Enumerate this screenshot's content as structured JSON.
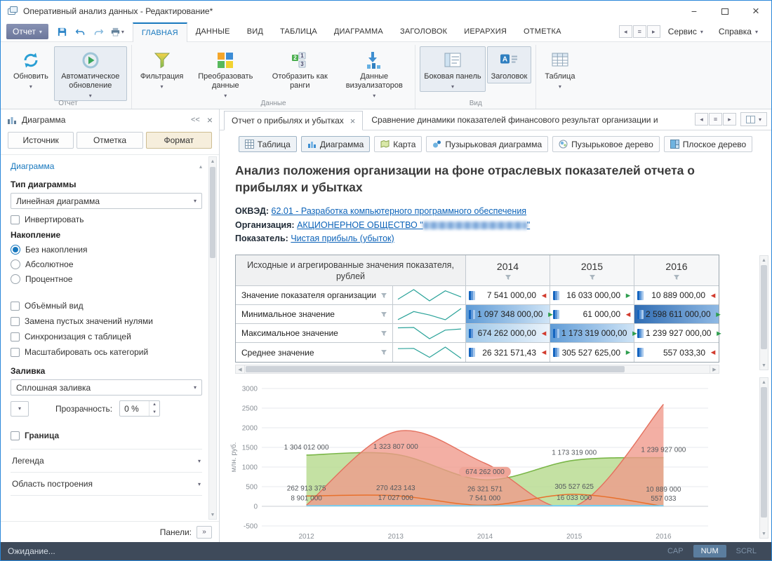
{
  "window": {
    "title": "Оперативный анализ данных - Редактирование*",
    "status_text": "Ожидание...",
    "keyboard_indicators": [
      {
        "label": "CAP",
        "active": false
      },
      {
        "label": "NUM",
        "active": true
      },
      {
        "label": "SCRL",
        "active": false
      }
    ]
  },
  "ribbon": {
    "file_button_label": "Отчет",
    "tabs": [
      "ГЛАВНАЯ",
      "ДАННЫЕ",
      "ВИД",
      "ТАБЛИЦА",
      "ДИАГРАММА",
      "ЗАГОЛОВОК",
      "ИЕРАРХИЯ",
      "ОТМЕТКА"
    ],
    "right_menus": [
      "Сервис",
      "Справка"
    ],
    "groups": [
      {
        "label": "Отчет",
        "buttons": [
          {
            "label": "Обновить",
            "caret": true,
            "selected": false
          },
          {
            "label": "Автоматическое обновление",
            "caret": true,
            "selected": true
          }
        ]
      },
      {
        "label": "Данные",
        "buttons": [
          {
            "label": "Фильтрация",
            "caret": true,
            "selected": false
          },
          {
            "label": "Преобразовать данные",
            "caret": true,
            "selected": false
          },
          {
            "label": "Отобразить как ранги",
            "caret": false,
            "selected": false
          },
          {
            "label": "Данные визуализаторов",
            "caret": true,
            "selected": false
          }
        ]
      },
      {
        "label": "Вид",
        "buttons": [
          {
            "label": "Боковая панель",
            "caret": true,
            "selected": true
          },
          {
            "label": "Заголовок",
            "caret": false,
            "selected": true
          }
        ]
      },
      {
        "label": "",
        "buttons": [
          {
            "label": "Таблица",
            "caret": true,
            "selected": false
          }
        ]
      }
    ]
  },
  "sidebar": {
    "title": "Диаграмма",
    "collapse_label": "<<",
    "close_label": "×",
    "tabs": [
      "Источник",
      "Отметка",
      "Формат"
    ],
    "active_tab_index": 2,
    "section_chart": "Диаграмма",
    "chart_type_label": "Тип диаграммы",
    "chart_type_value": "Линейная диаграмма",
    "invert_label": "Инвертировать",
    "stacking_label": "Накопление",
    "stacking_options": [
      "Без накопления",
      "Абсолютное",
      "Процентное"
    ],
    "stacking_selected": 0,
    "checkboxes": [
      "Объёмный вид",
      "Замена пустых значений нулями",
      "Синхронизация с таблицей",
      "Масштабировать ось категорий"
    ],
    "fill_label": "Заливка",
    "fill_value": "Сплошная заливка",
    "opacity_label": "Прозрачность:",
    "opacity_value": "0 %",
    "border_label": "Граница",
    "section_legend": "Легенда",
    "section_plotarea": "Область построения",
    "panels_label": "Панели:"
  },
  "doc_tabs": {
    "tabs": [
      {
        "label": "Отчет о прибылях и убытках",
        "active": true
      },
      {
        "label": "Сравнение динамики показателей финансового результат организации и",
        "active": false
      }
    ]
  },
  "visualizers": {
    "buttons": [
      {
        "label": "Таблица",
        "active": true
      },
      {
        "label": "Диаграмма",
        "active": true
      },
      {
        "label": "Карта",
        "active": false
      },
      {
        "label": "Пузырьковая диаграмма",
        "active": false
      },
      {
        "label": "Пузырьковое дерево",
        "active": false
      },
      {
        "label": "Плоское дерево",
        "active": false
      }
    ]
  },
  "report": {
    "title": "Анализ положения организации на фоне отраслевых показателей отчета о прибылях и убытках",
    "okved_label": "ОКВЭД:",
    "okved_link": "62.01 - Разработка компьютерного программного обеспечения",
    "org_label": "Организация:",
    "org_link_prefix": "АКЦИОНЕРНОЕ ОБЩЕСТВО \"",
    "org_link_suffix": "\"",
    "indicator_label": "Показатель:",
    "indicator_link": "Чистая прибыль (убыток)"
  },
  "table": {
    "header": "Исходные и агрегированные значения показателя, рублей",
    "years": [
      "2014",
      "2015",
      "2016"
    ],
    "rows": [
      {
        "label": "Значение показателя организации",
        "series_index": 3,
        "values": [
          "7 541 000,00",
          "16 033 000,00",
          "10 889 000,00"
        ],
        "trends": [
          "down",
          "up",
          "down"
        ],
        "highlights": [
          null,
          null,
          null
        ]
      },
      {
        "label": "Минимальное значение",
        "series_index": 1,
        "values": [
          "1 097 348 000,00",
          "61 000,00",
          "2 598 611 000,00"
        ],
        "trends": [
          "up",
          "down",
          "up"
        ],
        "highlights": [
          "mid",
          null,
          "strong"
        ]
      },
      {
        "label": "Максимальное значение",
        "series_index": 0,
        "values": [
          "674 262 000,00",
          "1 173 319 000,00",
          "1 239 927 000,00"
        ],
        "trends": [
          "down",
          "up",
          "up"
        ],
        "highlights": [
          "light",
          "mid",
          null
        ]
      },
      {
        "label": "Среднее значение",
        "series_index": 2,
        "values": [
          "26 321 571,43",
          "305 527 625,00",
          "557 033,30"
        ],
        "trends": [
          "down",
          "up",
          "down"
        ],
        "highlights": [
          null,
          null,
          null
        ]
      }
    ]
  },
  "chart_data": {
    "type": "area",
    "x": [
      2012,
      2013,
      2014,
      2015,
      2016
    ],
    "ylabel": "млн. руб.",
    "ylim": [
      -500,
      3000
    ],
    "ytick_step": 500,
    "grid": true,
    "bubble_label": {
      "series": 0,
      "index": 2
    },
    "series": [
      {
        "name": "Максимальное значение",
        "color": "#7ab648",
        "fill": true,
        "fill_color": "#b5d98c",
        "fill_opacity": 0.8,
        "width": 1.6,
        "values_mln": [
          1304.012,
          1323.807,
          674.262,
          1173.319,
          1239.927
        ],
        "labels": [
          "1 304 012 000",
          "1 323 807 000",
          "674 262 000",
          "1 173 319 000",
          "1 239 927 000"
        ]
      },
      {
        "name": "Минимальное значение",
        "color": "#e4705e",
        "fill": true,
        "fill_color": "#f0998b",
        "fill_opacity": 0.78,
        "width": 1.4,
        "values_mln": [
          30,
          1900,
          1097.348,
          0.061,
          2598.611
        ],
        "labels": []
      },
      {
        "name": "Среднее значение",
        "color": "#e8702c",
        "fill": false,
        "width": 1.5,
        "values_mln": [
          262.913,
          270.423,
          26.322,
          305.528,
          0.557
        ],
        "labels": [
          "262 913 375",
          "270 423 143",
          "26 321 571",
          "305 527 625",
          "557 033"
        ]
      },
      {
        "name": "Значение показателя организации",
        "color": "#6ecff6",
        "fill": false,
        "width": 2,
        "values_mln": [
          8.901,
          17.027,
          7.541,
          16.033,
          10.889
        ],
        "labels": [
          "8 901 000",
          "17 027 000",
          "7 541 000",
          "16 033 000",
          "10 889 000"
        ]
      }
    ]
  }
}
